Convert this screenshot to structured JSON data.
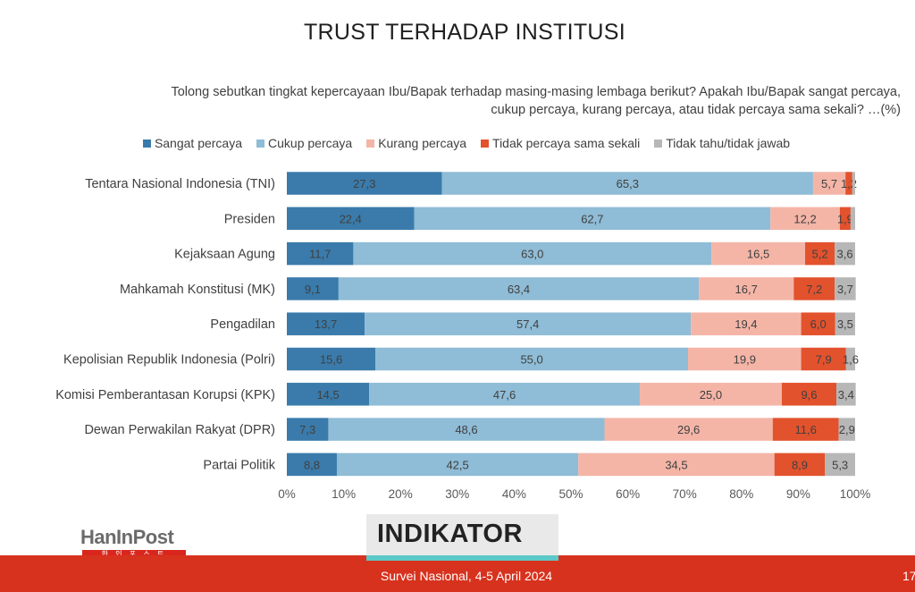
{
  "title": "TRUST TERHADAP INSTITUSI",
  "question_line1": "Tolong sebutkan tingkat kepercayaan Ibu/Bapak terhadap masing-masing lembaga berikut? Apakah Ibu/Bapak sangat percaya,",
  "question_line2": "cukup percaya, kurang percaya, atau tidak percaya sama sekali? …(%)",
  "footer": {
    "survey_label": "Survei Nasional, 4-5 April 2024",
    "page_number": "17"
  },
  "logos": {
    "left_logo": "HanInPost",
    "left_logo_sub": "한 인 포 스 트",
    "indikator": "INDIKATOR"
  },
  "colors": {
    "sangat": "#3a7bab",
    "cukup": "#8fbcd6",
    "kurang": "#f4b5a7",
    "tidak": "#e2522d",
    "tidaktahu": "#b7b7b7",
    "footer": "#d7321e"
  },
  "chart_data": {
    "type": "bar",
    "orientation": "horizontal-stacked-100",
    "title": "TRUST TERHADAP INSTITUSI",
    "categories": [
      "Tentara Nasional Indonesia (TNI)",
      "Presiden",
      "Kejaksaan Agung",
      "Mahkamah Konstitusi (MK)",
      "Pengadilan",
      "Kepolisian Republik Indonesia (Polri)",
      "Komisi Pemberantasan Korupsi (KPK)",
      "Dewan Perwakilan Rakyat (DPR)",
      "Partai Politik"
    ],
    "series": [
      {
        "name": "Sangat percaya",
        "color": "#3a7bab",
        "values": [
          27.3,
          22.4,
          11.7,
          9.1,
          13.7,
          15.6,
          14.5,
          7.3,
          8.8
        ],
        "labels": [
          "27,3",
          "22,4",
          "11,7",
          "9,1",
          "13,7",
          "15,6",
          "14,5",
          "7,3",
          "8,8"
        ]
      },
      {
        "name": "Cukup percaya",
        "color": "#8fbcd6",
        "values": [
          65.3,
          62.7,
          63.0,
          63.4,
          57.4,
          55.0,
          47.6,
          48.6,
          42.5
        ],
        "labels": [
          "65,3",
          "62,7",
          "63,0",
          "63,4",
          "57,4",
          "55,0",
          "47,6",
          "48,6",
          "42,5"
        ]
      },
      {
        "name": "Kurang percaya",
        "color": "#f4b5a7",
        "values": [
          5.7,
          12.2,
          16.5,
          16.7,
          19.4,
          19.9,
          25.0,
          29.6,
          34.5
        ],
        "labels": [
          "5,7",
          "12,2",
          "16,5",
          "16,7",
          "19,4",
          "19,9",
          "25,0",
          "29,6",
          "34,5"
        ]
      },
      {
        "name": "Tidak percaya sama sekali",
        "color": "#e2522d",
        "values": [
          1.2,
          1.9,
          5.2,
          7.2,
          6.0,
          7.9,
          9.6,
          11.6,
          8.9
        ],
        "labels": [
          "1,2",
          "1,9",
          "5,2",
          "7,2",
          "6,0",
          "7,9",
          "9,6",
          "11,6",
          "8,9"
        ]
      },
      {
        "name": "Tidak tahu/tidak jawab",
        "color": "#b7b7b7",
        "values": [
          0.5,
          0.8,
          3.6,
          3.7,
          3.5,
          1.6,
          3.4,
          2.9,
          5.3
        ],
        "labels": [
          "",
          "",
          "3,6",
          "3,7",
          "3,5",
          "1,6",
          "3,4",
          "2,9",
          "5,3"
        ]
      }
    ],
    "xlim": [
      0,
      100
    ],
    "xticks": [
      "0%",
      "10%",
      "20%",
      "30%",
      "40%",
      "50%",
      "60%",
      "70%",
      "80%",
      "90%",
      "100%"
    ],
    "legend_position": "top",
    "grid": false
  }
}
